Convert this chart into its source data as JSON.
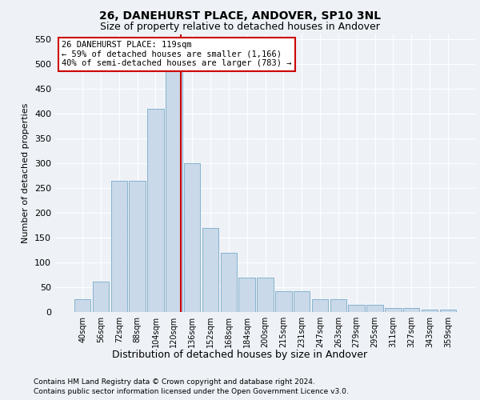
{
  "title1": "26, DANEHURST PLACE, ANDOVER, SP10 3NL",
  "title2": "Size of property relative to detached houses in Andover",
  "xlabel": "Distribution of detached houses by size in Andover",
  "ylabel": "Number of detached properties",
  "categories": [
    "40sqm",
    "56sqm",
    "72sqm",
    "88sqm",
    "104sqm",
    "120sqm",
    "136sqm",
    "152sqm",
    "168sqm",
    "184sqm",
    "200sqm",
    "215sqm",
    "231sqm",
    "247sqm",
    "263sqm",
    "279sqm",
    "295sqm",
    "311sqm",
    "327sqm",
    "343sqm",
    "359sqm"
  ],
  "bar_values": [
    25,
    62,
    265,
    265,
    410,
    510,
    300,
    170,
    120,
    70,
    70,
    42,
    42,
    25,
    25,
    15,
    15,
    8,
    8,
    5,
    5
  ],
  "bar_color": "#c9d9e9",
  "bar_edge_color": "#7aaac8",
  "annotation_text": "26 DANEHURST PLACE: 119sqm\n← 59% of detached houses are smaller (1,166)\n40% of semi-detached houses are larger (783) →",
  "annotation_box_color": "#ffffff",
  "annotation_box_edge": "#cc0000",
  "vline_color": "#cc0000",
  "vline_x_index": 5,
  "ylim": [
    0,
    560
  ],
  "yticks": [
    0,
    50,
    100,
    150,
    200,
    250,
    300,
    350,
    400,
    450,
    500,
    550
  ],
  "footer1": "Contains HM Land Registry data © Crown copyright and database right 2024.",
  "footer2": "Contains public sector information licensed under the Open Government Licence v3.0.",
  "bg_color": "#eef2f7",
  "plot_bg_color": "#eef2f7",
  "grid_color": "#ffffff",
  "title1_fontsize": 10,
  "title2_fontsize": 9,
  "ylabel_fontsize": 8,
  "xlabel_fontsize": 9,
  "xtick_fontsize": 7,
  "ytick_fontsize": 8,
  "annotation_fontsize": 7.5,
  "footer_fontsize": 6.5
}
